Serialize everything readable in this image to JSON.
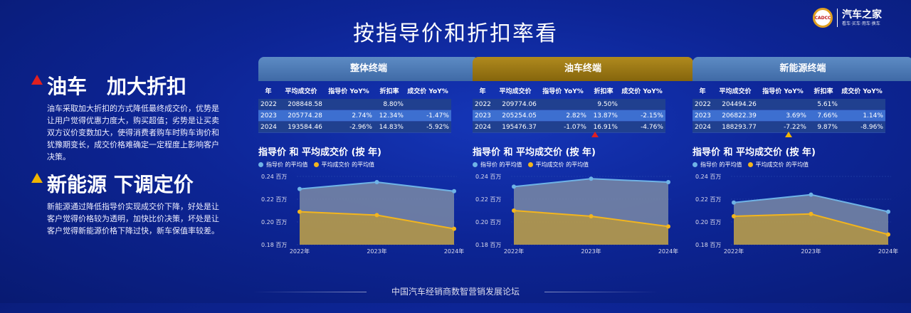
{
  "title": "按指导价和折扣率看",
  "logo": {
    "seal": "CADCC",
    "brand": "汽车之家",
    "tagline": "看车·买车·用车·换车"
  },
  "left": {
    "section1": {
      "heading": "油车　加大折扣",
      "text": "油车采取加大折扣的方式降低最终成交价，优势是让用户觉得优惠力度大，购买超值；劣势是让买卖双方议价变数加大，使得消费者购车时购车询价和犹豫期变长，成交价格难确定一定程度上影响客户决策。"
    },
    "section2": {
      "heading": "新能源 下调定价",
      "text": "新能源通过降低指导价实现成交价下降，好处是让客户觉得价格较为透明，加快比价决策，坏处是让客户觉得新能源价格下降过快，新车保值率较差。"
    }
  },
  "columns": [
    "年",
    "平均成交价",
    "指导价 YoY%",
    "折扣率",
    "成交价 YoY%"
  ],
  "chart_title": "指导价 和 平均成交价 (按 年)",
  "legend": {
    "s1": "指导价 的平均值",
    "s2": "平均成交价 的平均值"
  },
  "colors": {
    "guide": "#6fb3e6",
    "deal": "#f2b51e",
    "guideFill": "#7a8aa6",
    "dealFill": "#b99d4a"
  },
  "footer": "中国汽车经销商数智营销发展论坛",
  "panels": [
    {
      "header": "整体终端",
      "rows": [
        [
          "2022",
          "208848.58",
          "",
          "8.80%",
          ""
        ],
        [
          "2023",
          "205774.28",
          "2.74%",
          "12.34%",
          "-1.47%"
        ],
        [
          "2024",
          "193584.46",
          "-2.96%",
          "14.83%",
          "-5.92%"
        ]
      ]
    },
    {
      "header": "油车终端",
      "rows": [
        [
          "2022",
          "209774.06",
          "",
          "9.50%",
          ""
        ],
        [
          "2023",
          "205254.05",
          "2.82%",
          "13.87%",
          "-2.15%"
        ],
        [
          "2024",
          "195476.37",
          "-1.07%",
          "16.91%",
          "-4.76%"
        ]
      ]
    },
    {
      "header": "新能源终端",
      "rows": [
        [
          "2022",
          "204494.26",
          "",
          "5.61%",
          ""
        ],
        [
          "2023",
          "206822.39",
          "3.69%",
          "7.66%",
          "1.14%"
        ],
        [
          "2024",
          "188293.77",
          "-7.22%",
          "9.87%",
          "-8.96%"
        ]
      ]
    }
  ],
  "chart_data": [
    {
      "type": "area",
      "title": "指导价 和 平均成交价 (按 年)",
      "categories": [
        "2022年",
        "2023年",
        "2024年"
      ],
      "yticks": [
        "0.18 百万",
        "0.20 百万",
        "0.22 百万",
        "0.24 百万"
      ],
      "ylim": [
        0.18,
        0.24
      ],
      "series": [
        {
          "name": "指导价 的平均值",
          "values": [
            0.229,
            0.235,
            0.227
          ]
        },
        {
          "name": "平均成交价 的平均值",
          "values": [
            0.209,
            0.206,
            0.194
          ]
        }
      ]
    },
    {
      "type": "area",
      "title": "指导价 和 平均成交价 (按 年)",
      "categories": [
        "2022年",
        "2023年",
        "2024年"
      ],
      "yticks": [
        "0.18 百万",
        "0.20 百万",
        "0.22 百万",
        "0.24 百万"
      ],
      "ylim": [
        0.18,
        0.24
      ],
      "series": [
        {
          "name": "指导价 的平均值",
          "values": [
            0.231,
            0.238,
            0.235
          ]
        },
        {
          "name": "平均成交价 的平均值",
          "values": [
            0.21,
            0.205,
            0.196
          ]
        }
      ]
    },
    {
      "type": "area",
      "title": "指导价 和 平均成交价 (按 年)",
      "categories": [
        "2022年",
        "2023年",
        "2024年"
      ],
      "yticks": [
        "0.18 百万",
        "0.20 百万",
        "0.22 百万",
        "0.24 百万"
      ],
      "ylim": [
        0.18,
        0.24
      ],
      "series": [
        {
          "name": "指导价 的平均值",
          "values": [
            0.217,
            0.224,
            0.209
          ]
        },
        {
          "name": "平均成交价 的平均值",
          "values": [
            0.205,
            0.207,
            0.189
          ]
        }
      ]
    }
  ]
}
